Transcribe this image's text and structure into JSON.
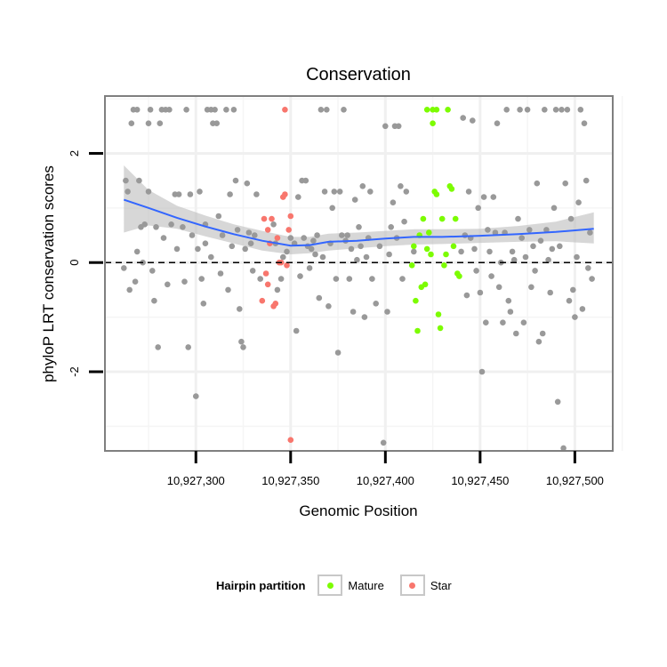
{
  "chart_data": {
    "type": "scatter",
    "title": "Conservation",
    "xlabel": "Genomic Position",
    "ylabel": "phyloP LRT conservation scores",
    "xlim": [
      10927252,
      10927520
    ],
    "ylim": [
      -3.45,
      3.05
    ],
    "x_ticks": [
      10927300,
      10927350,
      10927400,
      10927450,
      10927500
    ],
    "x_tick_labels": [
      "10,927,300",
      "10,927,350",
      "10,927,400",
      "10,927,450",
      "10,927,500"
    ],
    "y_ticks": [
      -2,
      0,
      2
    ],
    "y_tick_labels": [
      "-2",
      "0",
      "2"
    ],
    "reference_line": 0,
    "legend": {
      "title": "Hairpin partition",
      "position": "bottom",
      "entries": [
        {
          "label": "Mature",
          "color": "#7cfc00"
        },
        {
          "label": "Star",
          "color": "#f8766d"
        }
      ]
    },
    "series": [
      {
        "name": "Other",
        "color": "#999999",
        "points": [
          [
            10927262,
            -0.1
          ],
          [
            10927263,
            1.5
          ],
          [
            10927264,
            1.3
          ],
          [
            10927265,
            -0.5
          ],
          [
            10927266,
            2.55
          ],
          [
            10927267,
            2.8
          ],
          [
            10927268,
            -0.35
          ],
          [
            10927269,
            2.8
          ],
          [
            10927269,
            0.2
          ],
          [
            10927270,
            1.5
          ],
          [
            10927271,
            0.65
          ],
          [
            10927272,
            0.0
          ],
          [
            10927273,
            0.7
          ],
          [
            10927275,
            2.55
          ],
          [
            10927275,
            1.3
          ],
          [
            10927276,
            2.8
          ],
          [
            10927277,
            -0.15
          ],
          [
            10927278,
            -0.7
          ],
          [
            10927279,
            0.65
          ],
          [
            10927280,
            -1.55
          ],
          [
            10927281,
            2.55
          ],
          [
            10927282,
            2.8
          ],
          [
            10927283,
            0.45
          ],
          [
            10927284,
            2.8
          ],
          [
            10927285,
            -0.4
          ],
          [
            10927286,
            2.8
          ],
          [
            10927287,
            0.7
          ],
          [
            10927289,
            1.25
          ],
          [
            10927290,
            0.25
          ],
          [
            10927291,
            1.25
          ],
          [
            10927293,
            0.65
          ],
          [
            10927294,
            -0.35
          ],
          [
            10927295,
            2.8
          ],
          [
            10927296,
            -1.55
          ],
          [
            10927297,
            1.25
          ],
          [
            10927298,
            0.5
          ],
          [
            10927300,
            -2.45
          ],
          [
            10927301,
            0.25
          ],
          [
            10927302,
            1.3
          ],
          [
            10927303,
            -0.3
          ],
          [
            10927304,
            -0.75
          ],
          [
            10927305,
            0.7
          ],
          [
            10927305,
            0.35
          ],
          [
            10927306,
            2.8
          ],
          [
            10927308,
            2.8
          ],
          [
            10927308,
            0.1
          ],
          [
            10927309,
            2.55
          ],
          [
            10927310,
            2.8
          ],
          [
            10927311,
            2.55
          ],
          [
            10927312,
            0.85
          ],
          [
            10927313,
            -0.2
          ],
          [
            10927314,
            0.5
          ],
          [
            10927316,
            2.8
          ],
          [
            10927317,
            -0.5
          ],
          [
            10927318,
            1.25
          ],
          [
            10927319,
            0.3
          ],
          [
            10927320,
            2.8
          ],
          [
            10927321,
            1.5
          ],
          [
            10927322,
            0.6
          ],
          [
            10927323,
            -0.85
          ],
          [
            10927324,
            -1.45
          ],
          [
            10927325,
            -1.55
          ],
          [
            10927326,
            0.25
          ],
          [
            10927327,
            1.45
          ],
          [
            10927328,
            0.55
          ],
          [
            10927329,
            0.35
          ],
          [
            10927330,
            -0.15
          ],
          [
            10927331,
            0.5
          ],
          [
            10927332,
            1.25
          ],
          [
            10927334,
            -0.3
          ],
          [
            10927341,
            0.7
          ],
          [
            10927342,
            0.35
          ],
          [
            10927343,
            -0.5
          ],
          [
            10927345,
            -0.3
          ],
          [
            10927346,
            0.1
          ],
          [
            10927348,
            0.2
          ],
          [
            10927350,
            0.45
          ],
          [
            10927352,
            0.35
          ],
          [
            10927353,
            -1.25
          ],
          [
            10927354,
            1.2
          ],
          [
            10927355,
            -0.25
          ],
          [
            10927356,
            1.5
          ],
          [
            10927357,
            0.45
          ],
          [
            10927358,
            1.5
          ],
          [
            10927359,
            0.3
          ],
          [
            10927360,
            -0.1
          ],
          [
            10927361,
            0.25
          ],
          [
            10927362,
            0.4
          ],
          [
            10927363,
            0.15
          ],
          [
            10927364,
            0.5
          ],
          [
            10927365,
            -0.65
          ],
          [
            10927366,
            2.8
          ],
          [
            10927367,
            0.1
          ],
          [
            10927368,
            1.3
          ],
          [
            10927369,
            2.8
          ],
          [
            10927370,
            -0.8
          ],
          [
            10927371,
            0.35
          ],
          [
            10927372,
            1.0
          ],
          [
            10927373,
            1.3
          ],
          [
            10927374,
            -0.3
          ],
          [
            10927375,
            -1.65
          ],
          [
            10927376,
            1.3
          ],
          [
            10927377,
            0.5
          ],
          [
            10927378,
            2.8
          ],
          [
            10927379,
            0.4
          ],
          [
            10927380,
            0.5
          ],
          [
            10927381,
            -0.3
          ],
          [
            10927382,
            0.25
          ],
          [
            10927383,
            -0.9
          ],
          [
            10927384,
            1.15
          ],
          [
            10927385,
            0.05
          ],
          [
            10927386,
            0.65
          ],
          [
            10927387,
            0.3
          ],
          [
            10927388,
            1.4
          ],
          [
            10927389,
            -1.0
          ],
          [
            10927390,
            0.1
          ],
          [
            10927391,
            0.45
          ],
          [
            10927392,
            1.3
          ],
          [
            10927393,
            -0.3
          ],
          [
            10927395,
            -0.75
          ],
          [
            10927397,
            0.3
          ],
          [
            10927399,
            -3.3
          ],
          [
            10927400,
            2.5
          ],
          [
            10927401,
            -0.9
          ],
          [
            10927402,
            0.15
          ],
          [
            10927403,
            0.65
          ],
          [
            10927404,
            1.1
          ],
          [
            10927405,
            2.5
          ],
          [
            10927406,
            0.45
          ],
          [
            10927407,
            2.5
          ],
          [
            10927408,
            1.4
          ],
          [
            10927409,
            -0.3
          ],
          [
            10927410,
            0.75
          ],
          [
            10927411,
            1.3
          ],
          [
            10927415,
            0.2
          ],
          [
            10927440,
            0.2
          ],
          [
            10927441,
            2.65
          ],
          [
            10927442,
            0.5
          ],
          [
            10927443,
            -0.6
          ],
          [
            10927444,
            1.3
          ],
          [
            10927445,
            0.45
          ],
          [
            10927446,
            2.6
          ],
          [
            10927447,
            0.25
          ],
          [
            10927448,
            -0.15
          ],
          [
            10927449,
            1.0
          ],
          [
            10927450,
            -0.55
          ],
          [
            10927451,
            -2.0
          ],
          [
            10927452,
            1.2
          ],
          [
            10927453,
            -1.1
          ],
          [
            10927454,
            0.6
          ],
          [
            10927455,
            0.2
          ],
          [
            10927456,
            -0.25
          ],
          [
            10927457,
            1.2
          ],
          [
            10927458,
            0.55
          ],
          [
            10927459,
            2.55
          ],
          [
            10927460,
            -0.45
          ],
          [
            10927461,
            0.0
          ],
          [
            10927462,
            -1.1
          ],
          [
            10927463,
            0.55
          ],
          [
            10927464,
            2.8
          ],
          [
            10927465,
            -0.7
          ],
          [
            10927466,
            -0.9
          ],
          [
            10927467,
            0.2
          ],
          [
            10927468,
            0.05
          ],
          [
            10927469,
            -1.3
          ],
          [
            10927470,
            0.8
          ],
          [
            10927471,
            2.8
          ],
          [
            10927472,
            0.45
          ],
          [
            10927473,
            -1.1
          ],
          [
            10927474,
            0.1
          ],
          [
            10927475,
            2.8
          ],
          [
            10927476,
            0.6
          ],
          [
            10927477,
            -0.45
          ],
          [
            10927478,
            0.3
          ],
          [
            10927479,
            -0.15
          ],
          [
            10927480,
            1.45
          ],
          [
            10927481,
            -1.45
          ],
          [
            10927482,
            0.4
          ],
          [
            10927483,
            -1.3
          ],
          [
            10927484,
            2.8
          ],
          [
            10927485,
            0.6
          ],
          [
            10927486,
            0.05
          ],
          [
            10927487,
            -0.55
          ],
          [
            10927488,
            0.25
          ],
          [
            10927489,
            1.0
          ],
          [
            10927490,
            2.8
          ],
          [
            10927491,
            -2.55
          ],
          [
            10927492,
            0.3
          ],
          [
            10927493,
            2.8
          ],
          [
            10927494,
            -3.4
          ],
          [
            10927495,
            1.45
          ],
          [
            10927496,
            2.8
          ],
          [
            10927497,
            -0.7
          ],
          [
            10927498,
            0.8
          ],
          [
            10927499,
            -0.5
          ],
          [
            10927500,
            -1.0
          ],
          [
            10927501,
            0.1
          ],
          [
            10927502,
            1.1
          ],
          [
            10927503,
            2.8
          ],
          [
            10927504,
            -0.85
          ],
          [
            10927505,
            2.55
          ],
          [
            10927506,
            1.5
          ],
          [
            10927507,
            -0.1
          ],
          [
            10927508,
            0.55
          ],
          [
            10927509,
            -0.3
          ]
        ]
      },
      {
        "name": "Mature",
        "color": "#7cfc00",
        "points": [
          [
            10927414,
            -0.05
          ],
          [
            10927415,
            0.3
          ],
          [
            10927416,
            -0.7
          ],
          [
            10927417,
            -1.25
          ],
          [
            10927418,
            0.5
          ],
          [
            10927419,
            -0.45
          ],
          [
            10927420,
            0.8
          ],
          [
            10927421,
            -0.4
          ],
          [
            10927422,
            0.25
          ],
          [
            10927422,
            2.8
          ],
          [
            10927424,
            0.15
          ],
          [
            10927425,
            2.55
          ],
          [
            10927425,
            2.8
          ],
          [
            10927426,
            1.3
          ],
          [
            10927427,
            2.8
          ],
          [
            10927428,
            -0.95
          ],
          [
            10927429,
            -1.2
          ],
          [
            10927430,
            0.8
          ],
          [
            10927431,
            -0.05
          ],
          [
            10927432,
            0.15
          ],
          [
            10927433,
            2.8
          ],
          [
            10927434,
            1.4
          ],
          [
            10927435,
            1.35
          ],
          [
            10927436,
            0.3
          ],
          [
            10927437,
            0.8
          ],
          [
            10927438,
            -0.2
          ],
          [
            10927439,
            -0.25
          ],
          [
            10927423,
            0.55
          ],
          [
            10927427,
            1.25
          ]
        ]
      },
      {
        "name": "Star",
        "color": "#f8766d",
        "points": [
          [
            10927335,
            -0.7
          ],
          [
            10927336,
            0.8
          ],
          [
            10927337,
            -0.2
          ],
          [
            10927338,
            0.6
          ],
          [
            10927339,
            0.35
          ],
          [
            10927340,
            0.8
          ],
          [
            10927341,
            -0.8
          ],
          [
            10927342,
            -0.75
          ],
          [
            10927343,
            0.45
          ],
          [
            10927344,
            0.0
          ],
          [
            10927345,
            0.0
          ],
          [
            10927346,
            1.2
          ],
          [
            10927347,
            1.25
          ],
          [
            10927347,
            2.8
          ],
          [
            10927348,
            -0.05
          ],
          [
            10927349,
            0.6
          ],
          [
            10927350,
            0.85
          ],
          [
            10927350,
            -3.25
          ],
          [
            10927338,
            -0.4
          ]
        ]
      }
    ],
    "smooth": {
      "method": "loess",
      "color": "#3366ff",
      "x": [
        10927262,
        10927275,
        10927290,
        10927305,
        10927320,
        10927335,
        10927350,
        10927360,
        10927370,
        10927385,
        10927400,
        10927415,
        10927430,
        10927450,
        10927470,
        10927490,
        10927510
      ],
      "y": [
        1.15,
        1.0,
        0.82,
        0.66,
        0.52,
        0.4,
        0.31,
        0.32,
        0.38,
        0.4,
        0.44,
        0.47,
        0.47,
        0.49,
        0.52,
        0.56,
        0.62
      ],
      "ci_lower": [
        0.55,
        0.68,
        0.62,
        0.48,
        0.35,
        0.22,
        0.15,
        0.17,
        0.22,
        0.26,
        0.3,
        0.33,
        0.34,
        0.36,
        0.38,
        0.39,
        0.35
      ],
      "ci_upper": [
        1.78,
        1.33,
        1.04,
        0.86,
        0.7,
        0.58,
        0.47,
        0.47,
        0.53,
        0.55,
        0.58,
        0.61,
        0.61,
        0.62,
        0.67,
        0.75,
        0.92
      ]
    }
  }
}
